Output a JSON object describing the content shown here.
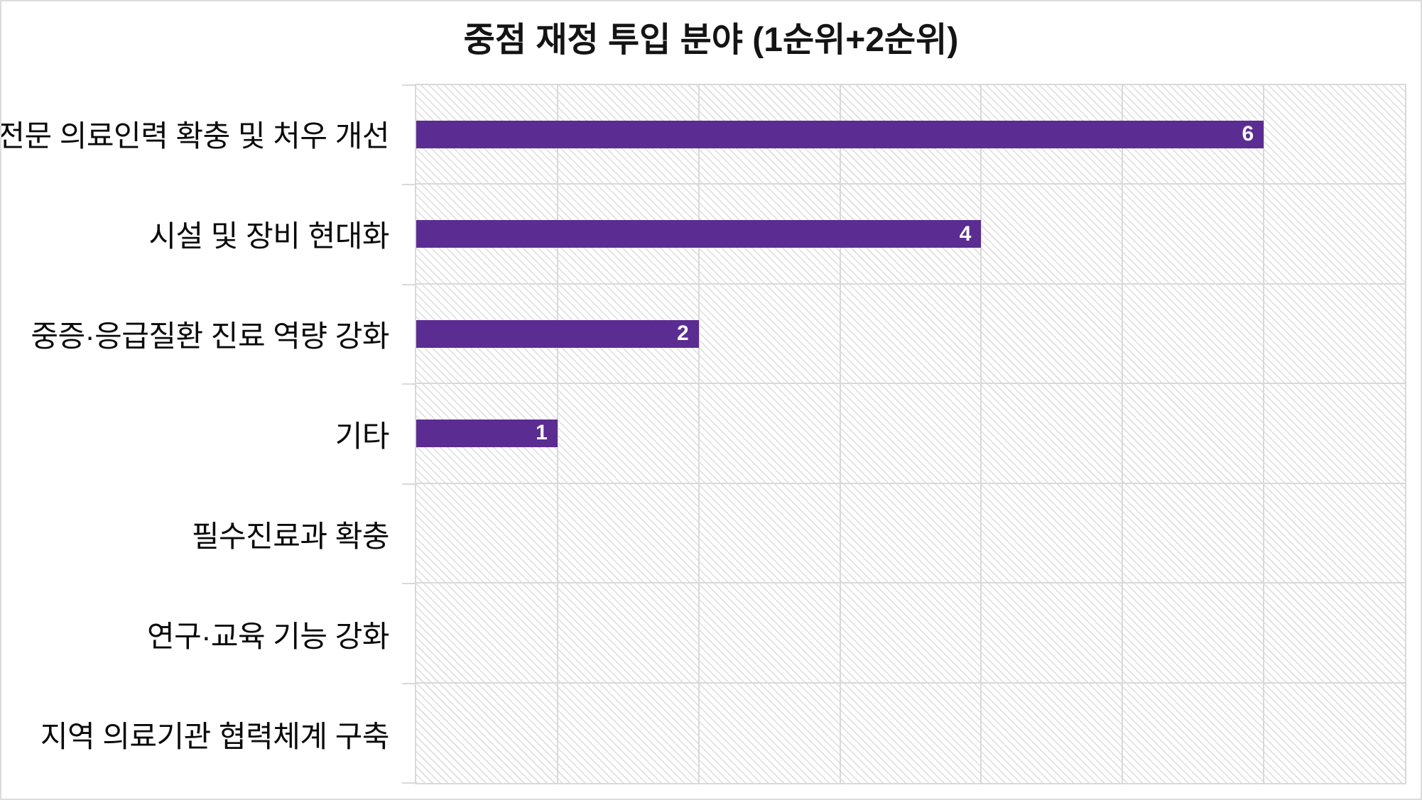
{
  "chart_data": {
    "type": "bar",
    "orientation": "horizontal",
    "title": "중점 재정 투입 분야 (1순위+2순위)",
    "categories": [
      "전문 의료인력 확충 및 처우 개선",
      "시설 및 장비 현대화",
      "중증·응급질환 진료 역량 강화",
      "기타",
      "필수진료과 확충",
      "연구·교육 기능 강화",
      "지역 의료기관 협력체계 구축"
    ],
    "values": [
      6,
      4,
      2,
      1,
      0,
      0,
      0
    ],
    "data_labels": [
      "6",
      "4",
      "2",
      "1",
      "",
      "",
      ""
    ],
    "xlabel": "",
    "ylabel": "",
    "xlim": [
      0,
      7
    ],
    "gridline_step": 1,
    "grid": true,
    "legend": "none",
    "plot_background": "light-diagonal-hatch"
  },
  "colors": {
    "bar": "#5b2c91",
    "value_label": "#ffffff",
    "gridline": "#d9d9d9",
    "hatch": "#e2e2e2",
    "title_text": "#141414",
    "category_text": "#0a0a0a",
    "background": "#ffffff",
    "outer_border": "#dcdcdc"
  }
}
